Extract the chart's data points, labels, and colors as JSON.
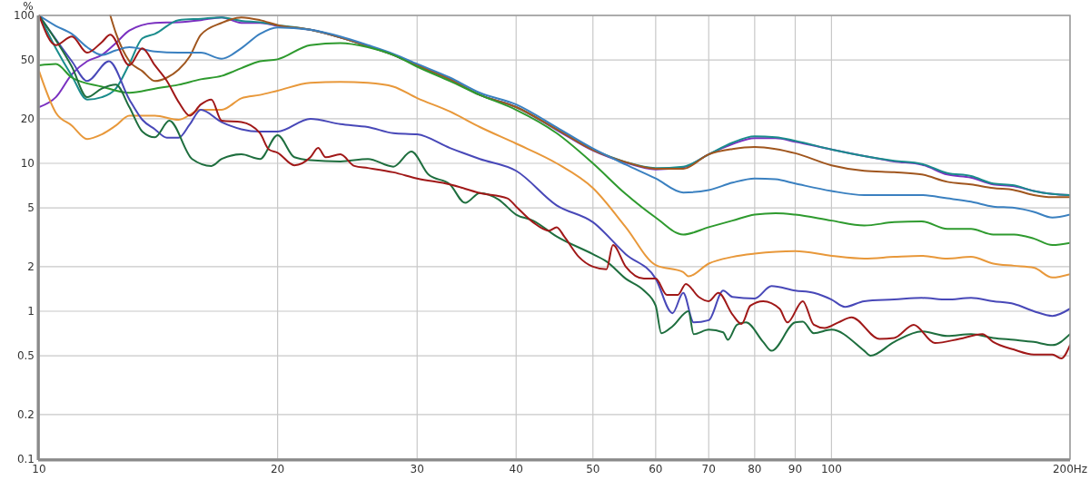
{
  "chart_data": {
    "type": "line",
    "ylabel": "%",
    "log": "xy",
    "grid": true,
    "line_style": "solid",
    "xlim": [
      10,
      200
    ],
    "ylim": [
      0.1,
      100
    ],
    "xticks": [
      10,
      20,
      30,
      40,
      50,
      60,
      70,
      80,
      90,
      100,
      {
        "value": 200,
        "label": "200Hz"
      }
    ],
    "yticks": [
      0.1,
      0.2,
      0.5,
      1,
      2,
      5,
      10,
      20,
      50,
      100
    ],
    "series": [
      {
        "color": "#7a30c0",
        "x": [
          10,
          10.5,
          11,
          11.5,
          12,
          12.5,
          13,
          14,
          15,
          16,
          17,
          18,
          19,
          20,
          22,
          24,
          26,
          28,
          30,
          33,
          36,
          40,
          45,
          50,
          55,
          60,
          65,
          70,
          75,
          80,
          85,
          90,
          100,
          110,
          120,
          130,
          140,
          150,
          160,
          170,
          180,
          190,
          200
        ],
        "values": [
          24,
          28,
          40,
          49,
          54,
          65,
          79,
          89,
          90,
          93,
          97,
          89,
          89,
          85,
          80,
          71,
          62,
          54,
          46,
          37,
          29,
          24,
          16.8,
          12.2,
          10.1,
          9.1,
          9.4,
          11.5,
          13.5,
          14.8,
          14.8,
          14,
          12.4,
          11.2,
          10.3,
          9.8,
          8.4,
          8,
          7.2,
          7,
          6.5,
          6.2,
          6.1
        ]
      },
      {
        "color": "#1a8c8c",
        "x": [
          10,
          10.5,
          11,
          11.5,
          12,
          12.5,
          13,
          13.5,
          14,
          15,
          16,
          17,
          18,
          19,
          20,
          22,
          24,
          26,
          28,
          30,
          33,
          36,
          40,
          45,
          50,
          55,
          60,
          65,
          70,
          75,
          80,
          85,
          90,
          100,
          110,
          120,
          130,
          140,
          150,
          160,
          170,
          180,
          190,
          200
        ],
        "values": [
          100,
          60,
          39,
          27,
          28,
          32,
          47,
          70,
          75,
          93,
          95,
          97,
          92,
          90,
          86,
          80,
          71,
          62,
          54,
          46,
          37,
          29,
          24,
          17,
          12.4,
          10.2,
          9.3,
          9.5,
          11.5,
          13.8,
          15.2,
          15,
          14.2,
          12.4,
          11.2,
          10.4,
          9.9,
          8.6,
          8.2,
          7.3,
          7.1,
          6.5,
          6.2,
          6.1
        ]
      },
      {
        "color": "#a0561e",
        "x": [
          12.3,
          12.5,
          13,
          13.5,
          14,
          14.5,
          15,
          15.5,
          16,
          17,
          18,
          19,
          20,
          22,
          24,
          26,
          28,
          30,
          33,
          36,
          40,
          45,
          50,
          55,
          60,
          65,
          70,
          75,
          80,
          85,
          90,
          100,
          110,
          120,
          130,
          140,
          150,
          160,
          170,
          180,
          190,
          200
        ],
        "values": [
          100,
          76,
          49,
          42,
          36,
          38,
          43,
          53,
          74,
          89,
          97,
          93,
          86,
          80,
          71,
          62,
          54,
          46,
          37,
          29,
          24,
          17,
          12.3,
          10.2,
          9.2,
          9.2,
          11.5,
          12.5,
          12.9,
          12.5,
          11.7,
          9.7,
          8.9,
          8.7,
          8.4,
          7.5,
          7.2,
          6.8,
          6.6,
          6.1,
          5.9,
          5.9
        ]
      },
      {
        "color": "#3a80c0",
        "x": [
          10,
          10.5,
          11,
          11.5,
          12,
          12.5,
          13,
          14,
          15,
          16,
          17,
          18,
          19,
          20,
          22,
          24,
          26,
          28,
          30,
          33,
          36,
          40,
          45,
          50,
          55,
          60,
          65,
          70,
          75,
          80,
          85,
          90,
          100,
          110,
          120,
          130,
          140,
          150,
          160,
          170,
          180,
          190,
          200
        ],
        "values": [
          100,
          85,
          75,
          61,
          54,
          58,
          61,
          57,
          56,
          56,
          51,
          60,
          75,
          83,
          80,
          72,
          63,
          55,
          47,
          38,
          30,
          25,
          17.5,
          12.6,
          9.8,
          7.9,
          6.35,
          6.6,
          7.4,
          7.9,
          7.8,
          7.3,
          6.5,
          6.1,
          6.1,
          6.1,
          5.8,
          5.5,
          5.1,
          5,
          4.7,
          4.3,
          4.5
        ]
      },
      {
        "color": "#2e9a2e",
        "x": [
          10,
          10.5,
          11,
          12,
          13,
          14,
          15,
          16,
          17,
          18,
          19,
          20,
          22,
          24,
          26,
          28,
          30,
          33,
          36,
          40,
          45,
          50,
          55,
          60,
          65,
          70,
          75,
          80,
          85,
          90,
          100,
          110,
          120,
          130,
          140,
          150,
          160,
          170,
          180,
          190,
          200
        ],
        "values": [
          46,
          47,
          38,
          33,
          30,
          32,
          34,
          37,
          39,
          44,
          49,
          50.5,
          63,
          65,
          61,
          54,
          45,
          36,
          29,
          23,
          16,
          10,
          6.2,
          4.3,
          3.3,
          3.7,
          4.1,
          4.5,
          4.6,
          4.5,
          4.1,
          3.8,
          4,
          4.05,
          3.6,
          3.6,
          3.3,
          3.3,
          3.1,
          2.8,
          2.9
        ]
      },
      {
        "color": "#e8983a",
        "x": [
          10,
          10.5,
          11,
          11.5,
          12,
          12.5,
          13,
          14,
          15,
          16,
          17,
          18,
          19,
          20,
          22,
          24,
          26,
          28,
          30,
          33,
          36,
          40,
          45,
          50,
          55,
          60,
          65,
          66,
          70,
          75,
          80,
          90,
          100,
          110,
          120,
          130,
          140,
          150,
          160,
          170,
          180,
          190,
          200
        ],
        "values": [
          42,
          22,
          18,
          14.6,
          15.7,
          18,
          21,
          21,
          19.7,
          23,
          23,
          27.5,
          29,
          31,
          35,
          35.5,
          35,
          33,
          27.6,
          22.4,
          17.6,
          13.6,
          10,
          6.8,
          3.7,
          2.05,
          1.84,
          1.72,
          2.1,
          2.33,
          2.45,
          2.55,
          2.37,
          2.27,
          2.33,
          2.37,
          2.27,
          2.33,
          2.1,
          2.03,
          1.97,
          1.69,
          1.78
        ]
      },
      {
        "color": "#4848b8",
        "x": [
          10,
          11,
          11.5,
          12.25,
          13,
          13.5,
          14,
          14.5,
          15,
          15.5,
          16,
          17,
          18,
          19,
          20,
          22,
          24,
          26,
          28,
          30,
          33,
          36,
          40,
          45,
          50,
          55,
          60,
          63,
          65,
          67,
          70,
          73,
          75,
          80,
          84,
          90,
          95,
          100,
          104,
          110,
          120,
          130,
          140,
          150,
          160,
          170,
          180,
          190,
          200
        ],
        "values": [
          100,
          49,
          36,
          49,
          27,
          19.7,
          17,
          14.9,
          14.9,
          18.4,
          23,
          19,
          17,
          16.4,
          16.4,
          20,
          18.4,
          17.6,
          16,
          15.7,
          12.7,
          10.7,
          8.9,
          5.2,
          4,
          2.43,
          1.66,
          0.97,
          1.33,
          0.84,
          0.87,
          1.38,
          1.25,
          1.22,
          1.48,
          1.38,
          1.33,
          1.2,
          1.07,
          1.17,
          1.2,
          1.23,
          1.2,
          1.23,
          1.17,
          1.12,
          1,
          0.93,
          1.04
        ]
      },
      {
        "color": "#1e6e3e",
        "x": [
          10,
          11,
          11.5,
          12,
          12.5,
          13,
          13.5,
          14,
          14.6,
          15.6,
          16.5,
          17,
          18,
          19,
          20,
          21,
          22,
          24,
          26,
          28,
          29.5,
          31,
          33,
          34.5,
          36,
          38,
          40,
          42,
          45,
          50,
          52,
          55,
          58,
          60,
          61,
          63,
          66,
          67,
          70,
          73,
          74,
          76,
          78,
          82,
          84,
          90,
          92,
          95,
          100,
          110,
          112,
          120,
          130,
          140,
          150,
          160,
          170,
          180,
          190,
          200
        ],
        "values": [
          100,
          45,
          28,
          32,
          34,
          24,
          16.4,
          15,
          19.4,
          10.7,
          9.6,
          10.7,
          11.5,
          10.7,
          15.5,
          11,
          10.5,
          10.3,
          10.7,
          9.5,
          12,
          8.4,
          7.2,
          5.4,
          6.3,
          5.7,
          4.5,
          4.1,
          3.2,
          2.43,
          2.17,
          1.66,
          1.38,
          1.09,
          0.71,
          0.79,
          1,
          0.7,
          0.75,
          0.72,
          0.64,
          0.81,
          0.84,
          0.62,
          0.54,
          0.84,
          0.85,
          0.71,
          0.75,
          0.54,
          0.5,
          0.62,
          0.73,
          0.68,
          0.7,
          0.66,
          0.64,
          0.62,
          0.59,
          0.7
        ]
      },
      {
        "color": "#a01818",
        "x": [
          10,
          10.5,
          11,
          11.5,
          12,
          12.3,
          13,
          13.5,
          14,
          14.5,
          15,
          15.5,
          16,
          16.5,
          17,
          18,
          19,
          19.5,
          20,
          21,
          22,
          22.5,
          23,
          24,
          25,
          26,
          28,
          30,
          33,
          36,
          39,
          40,
          42,
          44,
          45,
          46,
          48,
          50,
          52,
          53,
          55,
          58,
          60,
          62,
          64,
          65.5,
          68,
          70,
          72,
          75,
          77,
          79,
          82,
          86,
          88,
          92,
          95,
          98,
          102,
          106,
          115,
          120,
          127,
          135,
          145,
          155,
          160,
          170,
          180,
          190,
          195,
          200
        ],
        "values": [
          100,
          63,
          72,
          56,
          66,
          74,
          46,
          60,
          46,
          36,
          26,
          21,
          25,
          27,
          19.4,
          19,
          16,
          12.4,
          11.8,
          9.7,
          11,
          12.7,
          11,
          11.5,
          9.6,
          9.3,
          8.7,
          7.9,
          7.2,
          6.3,
          5.8,
          5.1,
          4,
          3.5,
          3.7,
          3.2,
          2.33,
          2,
          1.92,
          2.8,
          2,
          1.66,
          1.66,
          1.29,
          1.29,
          1.53,
          1.25,
          1.17,
          1.33,
          0.95,
          0.82,
          1.09,
          1.17,
          1.04,
          0.84,
          1.17,
          0.81,
          0.77,
          0.84,
          0.91,
          0.65,
          0.66,
          0.81,
          0.61,
          0.65,
          0.7,
          0.62,
          0.55,
          0.51,
          0.51,
          0.48,
          0.59
        ]
      }
    ]
  }
}
